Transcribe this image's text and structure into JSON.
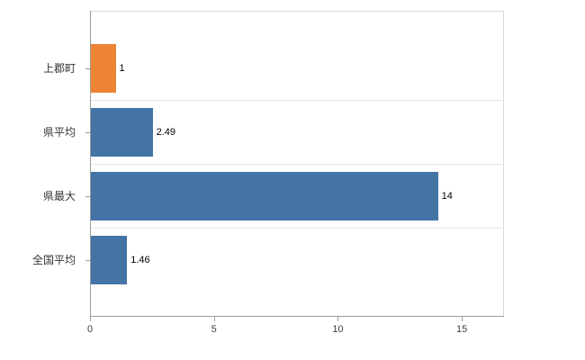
{
  "chart_data": {
    "type": "bar",
    "orientation": "horizontal",
    "title": "",
    "xlabel": "",
    "ylabel": "",
    "categories": [
      "上郡町",
      "県平均",
      "県最大",
      "全国平均"
    ],
    "values": [
      1,
      2.49,
      14,
      1.46
    ],
    "value_labels": [
      "1",
      "2.49",
      "14",
      "1.46"
    ],
    "bar_colors": [
      "#ee8433",
      "#4473a5",
      "#4473a5",
      "#4473a5"
    ],
    "x_ticks": [
      0,
      5,
      10,
      15
    ],
    "x_tick_labels": [
      "0",
      "5",
      "10",
      "15"
    ],
    "xlim": [
      0,
      16.7
    ],
    "grid": "row-separators",
    "legend": null,
    "background_color": "#ffffff",
    "accent_orange": "#ee8433",
    "accent_blue": "#4473a5"
  }
}
